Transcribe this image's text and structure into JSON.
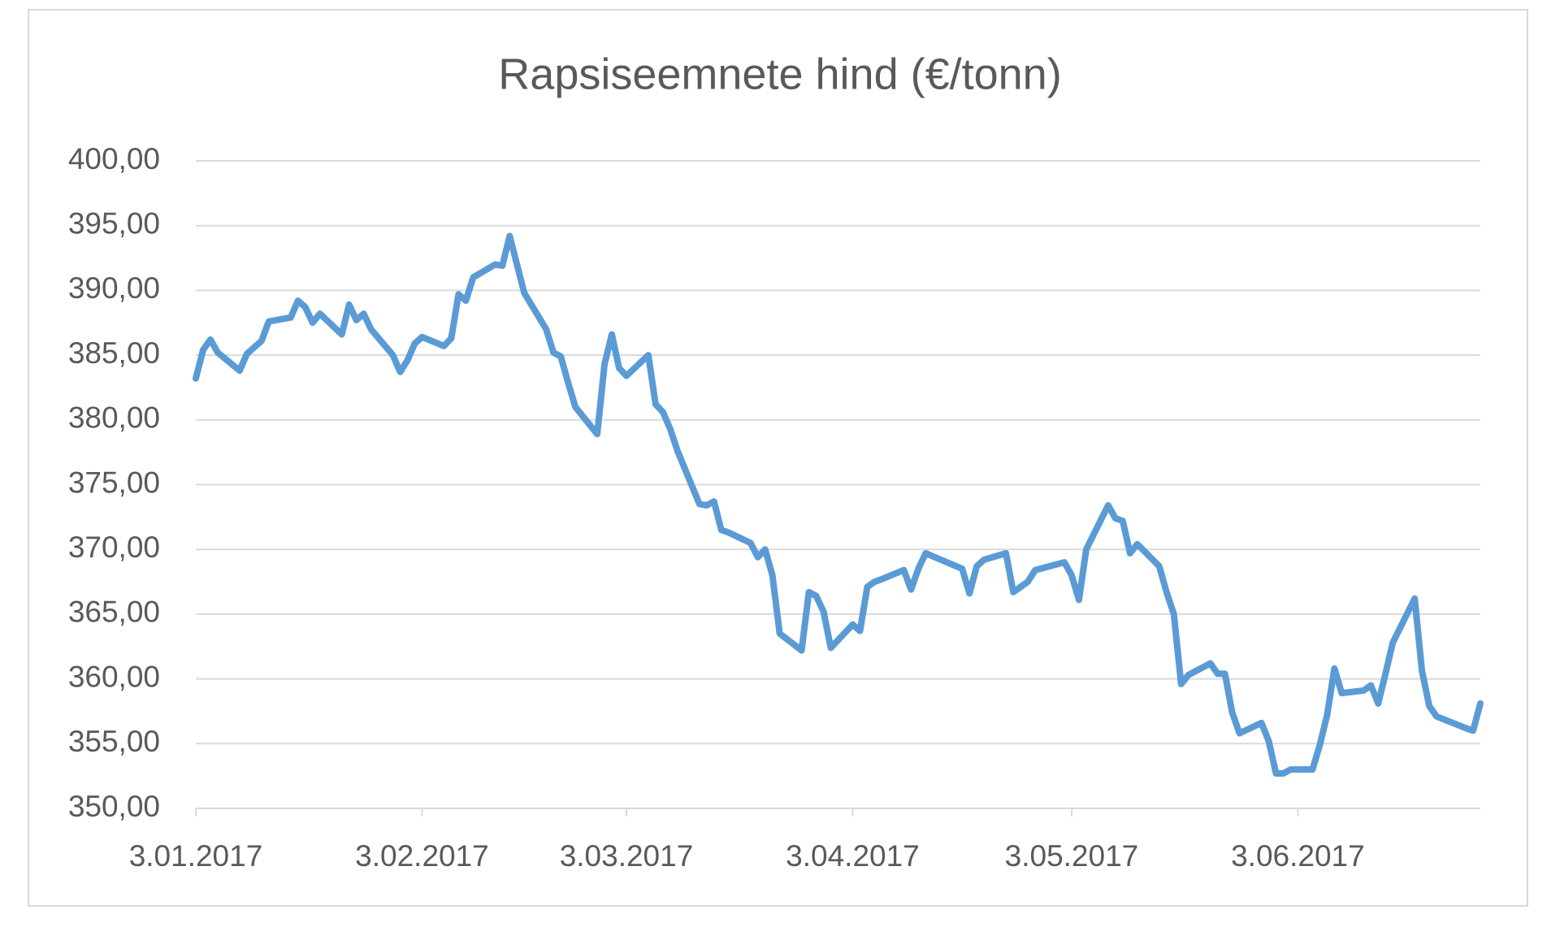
{
  "chart_data": {
    "type": "line",
    "title": "Rapsiseemnete hind (€/tonn)",
    "x": [
      "2017-01-03",
      "2017-01-04",
      "2017-01-05",
      "2017-01-06",
      "2017-01-09",
      "2017-01-10",
      "2017-01-12",
      "2017-01-13",
      "2017-01-16",
      "2017-01-17",
      "2017-01-18",
      "2017-01-19",
      "2017-01-20",
      "2017-01-23",
      "2017-01-24",
      "2017-01-25",
      "2017-01-26",
      "2017-01-27",
      "2017-01-30",
      "2017-01-31",
      "2017-02-01",
      "2017-02-02",
      "2017-02-03",
      "2017-02-06",
      "2017-02-07",
      "2017-02-08",
      "2017-02-09",
      "2017-02-10",
      "2017-02-13",
      "2017-02-14",
      "2017-02-15",
      "2017-02-16",
      "2017-02-17",
      "2017-02-20",
      "2017-02-21",
      "2017-02-22",
      "2017-02-23",
      "2017-02-24",
      "2017-02-27",
      "2017-02-28",
      "2017-03-01",
      "2017-03-02",
      "2017-03-03",
      "2017-03-06",
      "2017-03-07",
      "2017-03-08",
      "2017-03-09",
      "2017-03-10",
      "2017-03-13",
      "2017-03-14",
      "2017-03-15",
      "2017-03-16",
      "2017-03-17",
      "2017-03-20",
      "2017-03-21",
      "2017-03-22",
      "2017-03-23",
      "2017-03-24",
      "2017-03-27",
      "2017-03-28",
      "2017-03-29",
      "2017-03-30",
      "2017-03-31",
      "2017-04-03",
      "2017-04-04",
      "2017-04-05",
      "2017-04-06",
      "2017-04-07",
      "2017-04-10",
      "2017-04-11",
      "2017-04-12",
      "2017-04-13",
      "2017-04-18",
      "2017-04-19",
      "2017-04-20",
      "2017-04-21",
      "2017-04-24",
      "2017-04-25",
      "2017-04-26",
      "2017-04-27",
      "2017-04-28",
      "2017-05-02",
      "2017-05-03",
      "2017-05-04",
      "2017-05-05",
      "2017-05-08",
      "2017-05-09",
      "2017-05-10",
      "2017-05-11",
      "2017-05-12",
      "2017-05-15",
      "2017-05-16",
      "2017-05-17",
      "2017-05-18",
      "2017-05-19",
      "2017-05-22",
      "2017-05-23",
      "2017-05-24",
      "2017-05-25",
      "2017-05-26",
      "2017-05-29",
      "2017-05-30",
      "2017-05-31",
      "2017-06-01",
      "2017-06-02",
      "2017-06-05",
      "2017-06-06",
      "2017-06-07",
      "2017-06-08",
      "2017-06-09",
      "2017-06-12",
      "2017-06-13",
      "2017-06-14",
      "2017-06-15",
      "2017-06-16",
      "2017-06-19",
      "2017-06-20",
      "2017-06-21",
      "2017-06-22",
      "2017-06-26",
      "2017-06-27",
      "2017-06-28"
    ],
    "series": [
      {
        "color": "#5b9bd5",
        "values": [
          383.2,
          385.4,
          386.2,
          385.2,
          383.8,
          385.1,
          386.1,
          387.6,
          387.9,
          389.2,
          388.7,
          387.5,
          388.2,
          386.6,
          388.9,
          387.7,
          388.2,
          387.0,
          385.0,
          383.7,
          384.6,
          385.9,
          386.4,
          385.7,
          386.3,
          389.7,
          389.2,
          391.0,
          392.0,
          391.9,
          394.2,
          392.0,
          389.8,
          387.0,
          385.2,
          384.9,
          382.9,
          381.0,
          378.9,
          384.3,
          386.6,
          384.0,
          383.4,
          385.0,
          381.2,
          380.6,
          379.3,
          377.6,
          373.5,
          373.4,
          373.7,
          371.5,
          371.3,
          370.5,
          369.4,
          370.0,
          368.0,
          363.5,
          362.2,
          366.7,
          366.4,
          365.2,
          362.4,
          364.2,
          363.7,
          367.1,
          367.5,
          367.7,
          368.4,
          366.9,
          368.5,
          369.7,
          368.5,
          366.6,
          368.7,
          369.2,
          369.7,
          366.7,
          367.1,
          367.5,
          368.4,
          369.0,
          368.0,
          366.1,
          370.0,
          373.4,
          372.4,
          372.2,
          369.7,
          370.4,
          368.7,
          366.7,
          365.0,
          359.6,
          360.3,
          361.2,
          360.4,
          360.4,
          357.4,
          355.8,
          356.6,
          355.2,
          352.7,
          352.7,
          353.0,
          353.0,
          354.9,
          357.2,
          360.8,
          358.9,
          359.1,
          359.5,
          358.1,
          360.4,
          362.8,
          366.2,
          360.6,
          357.9,
          357.1,
          356.2,
          356.0,
          358.1
        ]
      }
    ],
    "xlim": [
      "2017-01-03",
      "2017-06-28"
    ],
    "xticks": [
      {
        "value": "2017-01-03",
        "label": "3.01.2017"
      },
      {
        "value": "2017-02-03",
        "label": "3.02.2017"
      },
      {
        "value": "2017-03-03",
        "label": "3.03.2017"
      },
      {
        "value": "2017-04-03",
        "label": "3.04.2017"
      },
      {
        "value": "2017-05-03",
        "label": "3.05.2017"
      },
      {
        "value": "2017-06-03",
        "label": "3.06.2017"
      }
    ],
    "ylim": [
      350,
      400
    ],
    "yticks": [
      {
        "value": 350,
        "label": "350,00"
      },
      {
        "value": 355,
        "label": "355,00"
      },
      {
        "value": 360,
        "label": "360,00"
      },
      {
        "value": 365,
        "label": "365,00"
      },
      {
        "value": 370,
        "label": "370,00"
      },
      {
        "value": 375,
        "label": "375,00"
      },
      {
        "value": 380,
        "label": "380,00"
      },
      {
        "value": 385,
        "label": "385,00"
      },
      {
        "value": 390,
        "label": "390,00"
      },
      {
        "value": 395,
        "label": "395,00"
      },
      {
        "value": 400,
        "label": "400,00"
      }
    ],
    "grid": true
  }
}
